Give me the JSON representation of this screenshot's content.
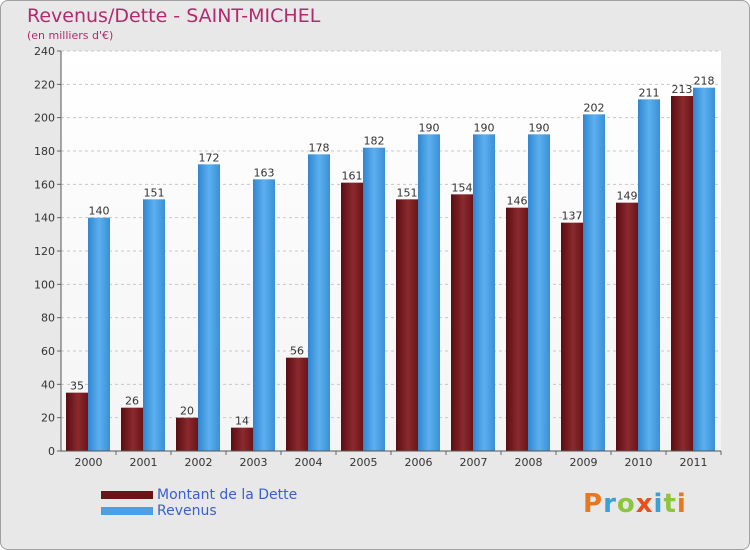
{
  "chart_data": {
    "type": "bar",
    "title": "Revenus/Dette - SAINT-MICHEL",
    "subtitle": "(en milliers d'€)",
    "categories": [
      "2000",
      "2001",
      "2002",
      "2003",
      "2004",
      "2005",
      "2006",
      "2007",
      "2008",
      "2009",
      "2010",
      "2011"
    ],
    "series": [
      {
        "name": "Montant de la Dette",
        "color": "#7a1a1e",
        "values": [
          35,
          26,
          20,
          14,
          56,
          161,
          151,
          154,
          146,
          137,
          149,
          213
        ]
      },
      {
        "name": "Revenus",
        "color": "#4aa0e6",
        "values": [
          140,
          151,
          172,
          163,
          178,
          182,
          190,
          190,
          190,
          202,
          211,
          218
        ]
      }
    ],
    "ylim": [
      0,
      240
    ],
    "yticks": [
      0,
      20,
      40,
      60,
      80,
      100,
      120,
      140,
      160,
      180,
      200,
      220,
      240
    ],
    "grid": true,
    "legend_position": "bottom-left"
  },
  "logo": {
    "letters": [
      "P",
      "r",
      "o",
      "x",
      "i",
      "t",
      "i"
    ],
    "colors": [
      "#e87722",
      "#3aa0d8",
      "#8cc63f",
      "#e94e1b",
      "#3aa0d8",
      "#8cc63f",
      "#e87722"
    ]
  }
}
